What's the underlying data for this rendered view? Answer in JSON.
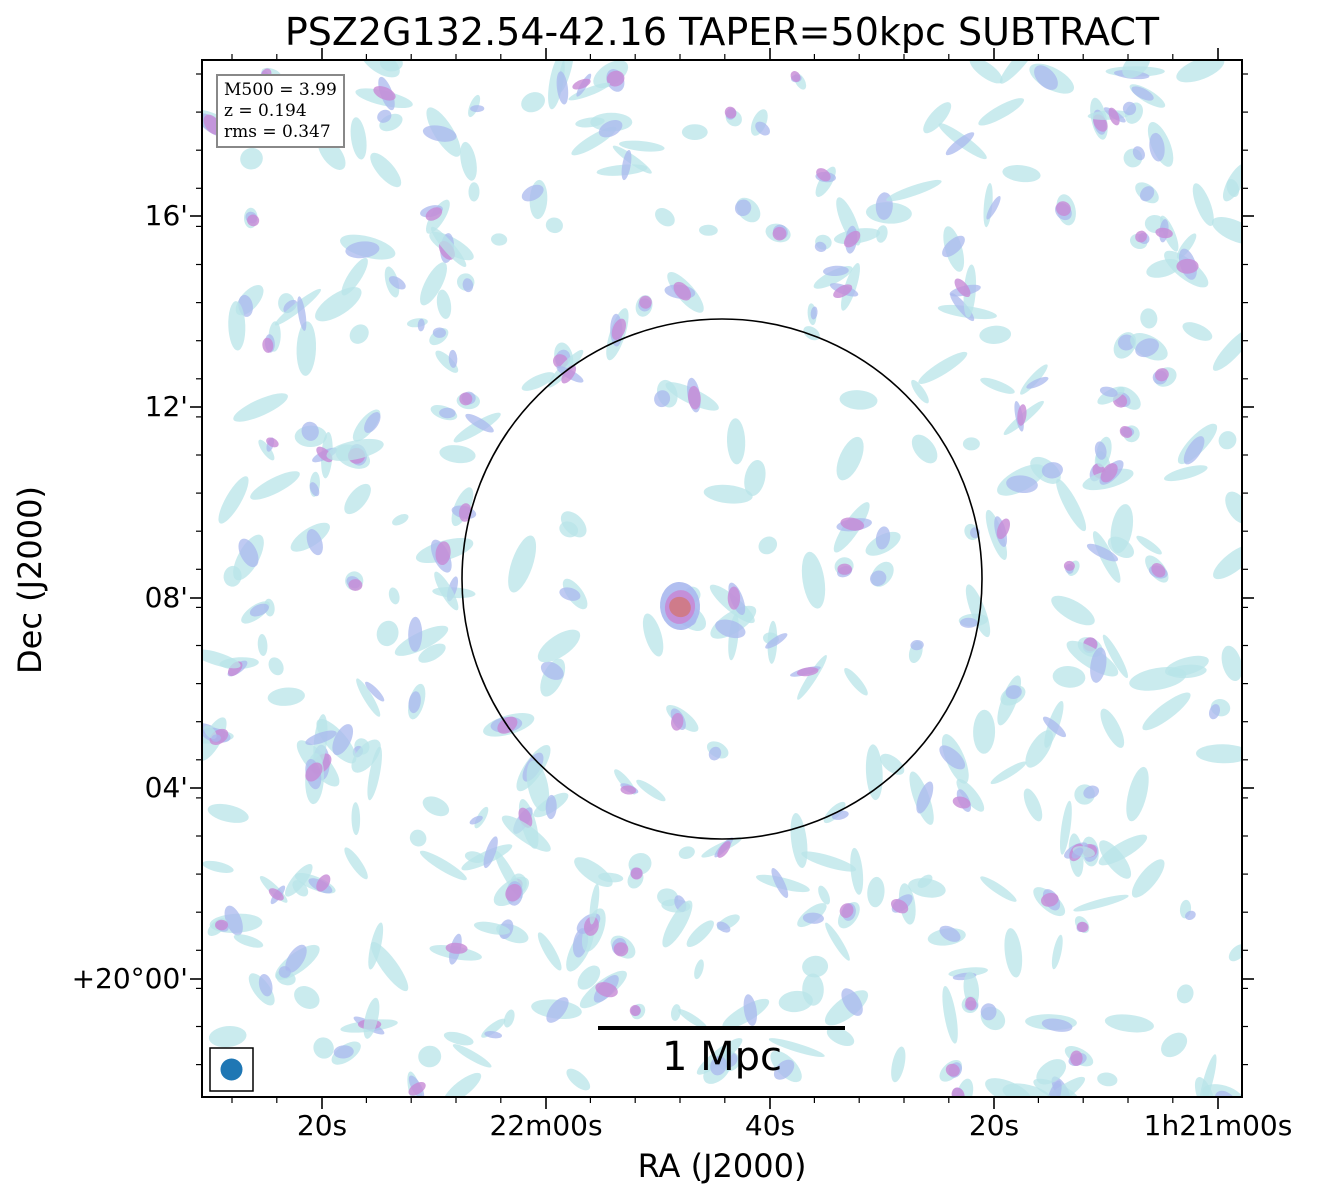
{
  "title": "PSZ2G132.54-42.16 TAPER=50kpc SUBTRACT",
  "axes": {
    "xlabel": "RA (J2000)",
    "ylabel": "Dec (J2000)",
    "xticks": [
      "20s",
      "22m00s",
      "40s",
      "20s",
      "1h21m00s"
    ],
    "yticks": [
      "16'",
      "12'",
      "08'",
      "04'",
      "+20°00'"
    ]
  },
  "info_box": {
    "mass": "M500 = 3.99",
    "redshift": "z = 0.194",
    "rms": "rms = 0.347"
  },
  "scalebar": {
    "label": "1 Mpc"
  },
  "colors": {
    "low": "#b8e4e8",
    "mid": "#a9b8ee",
    "high": "#c78ad6",
    "peak": "#d07a86",
    "beam": "#1f77b4",
    "circle": "#000000"
  }
}
